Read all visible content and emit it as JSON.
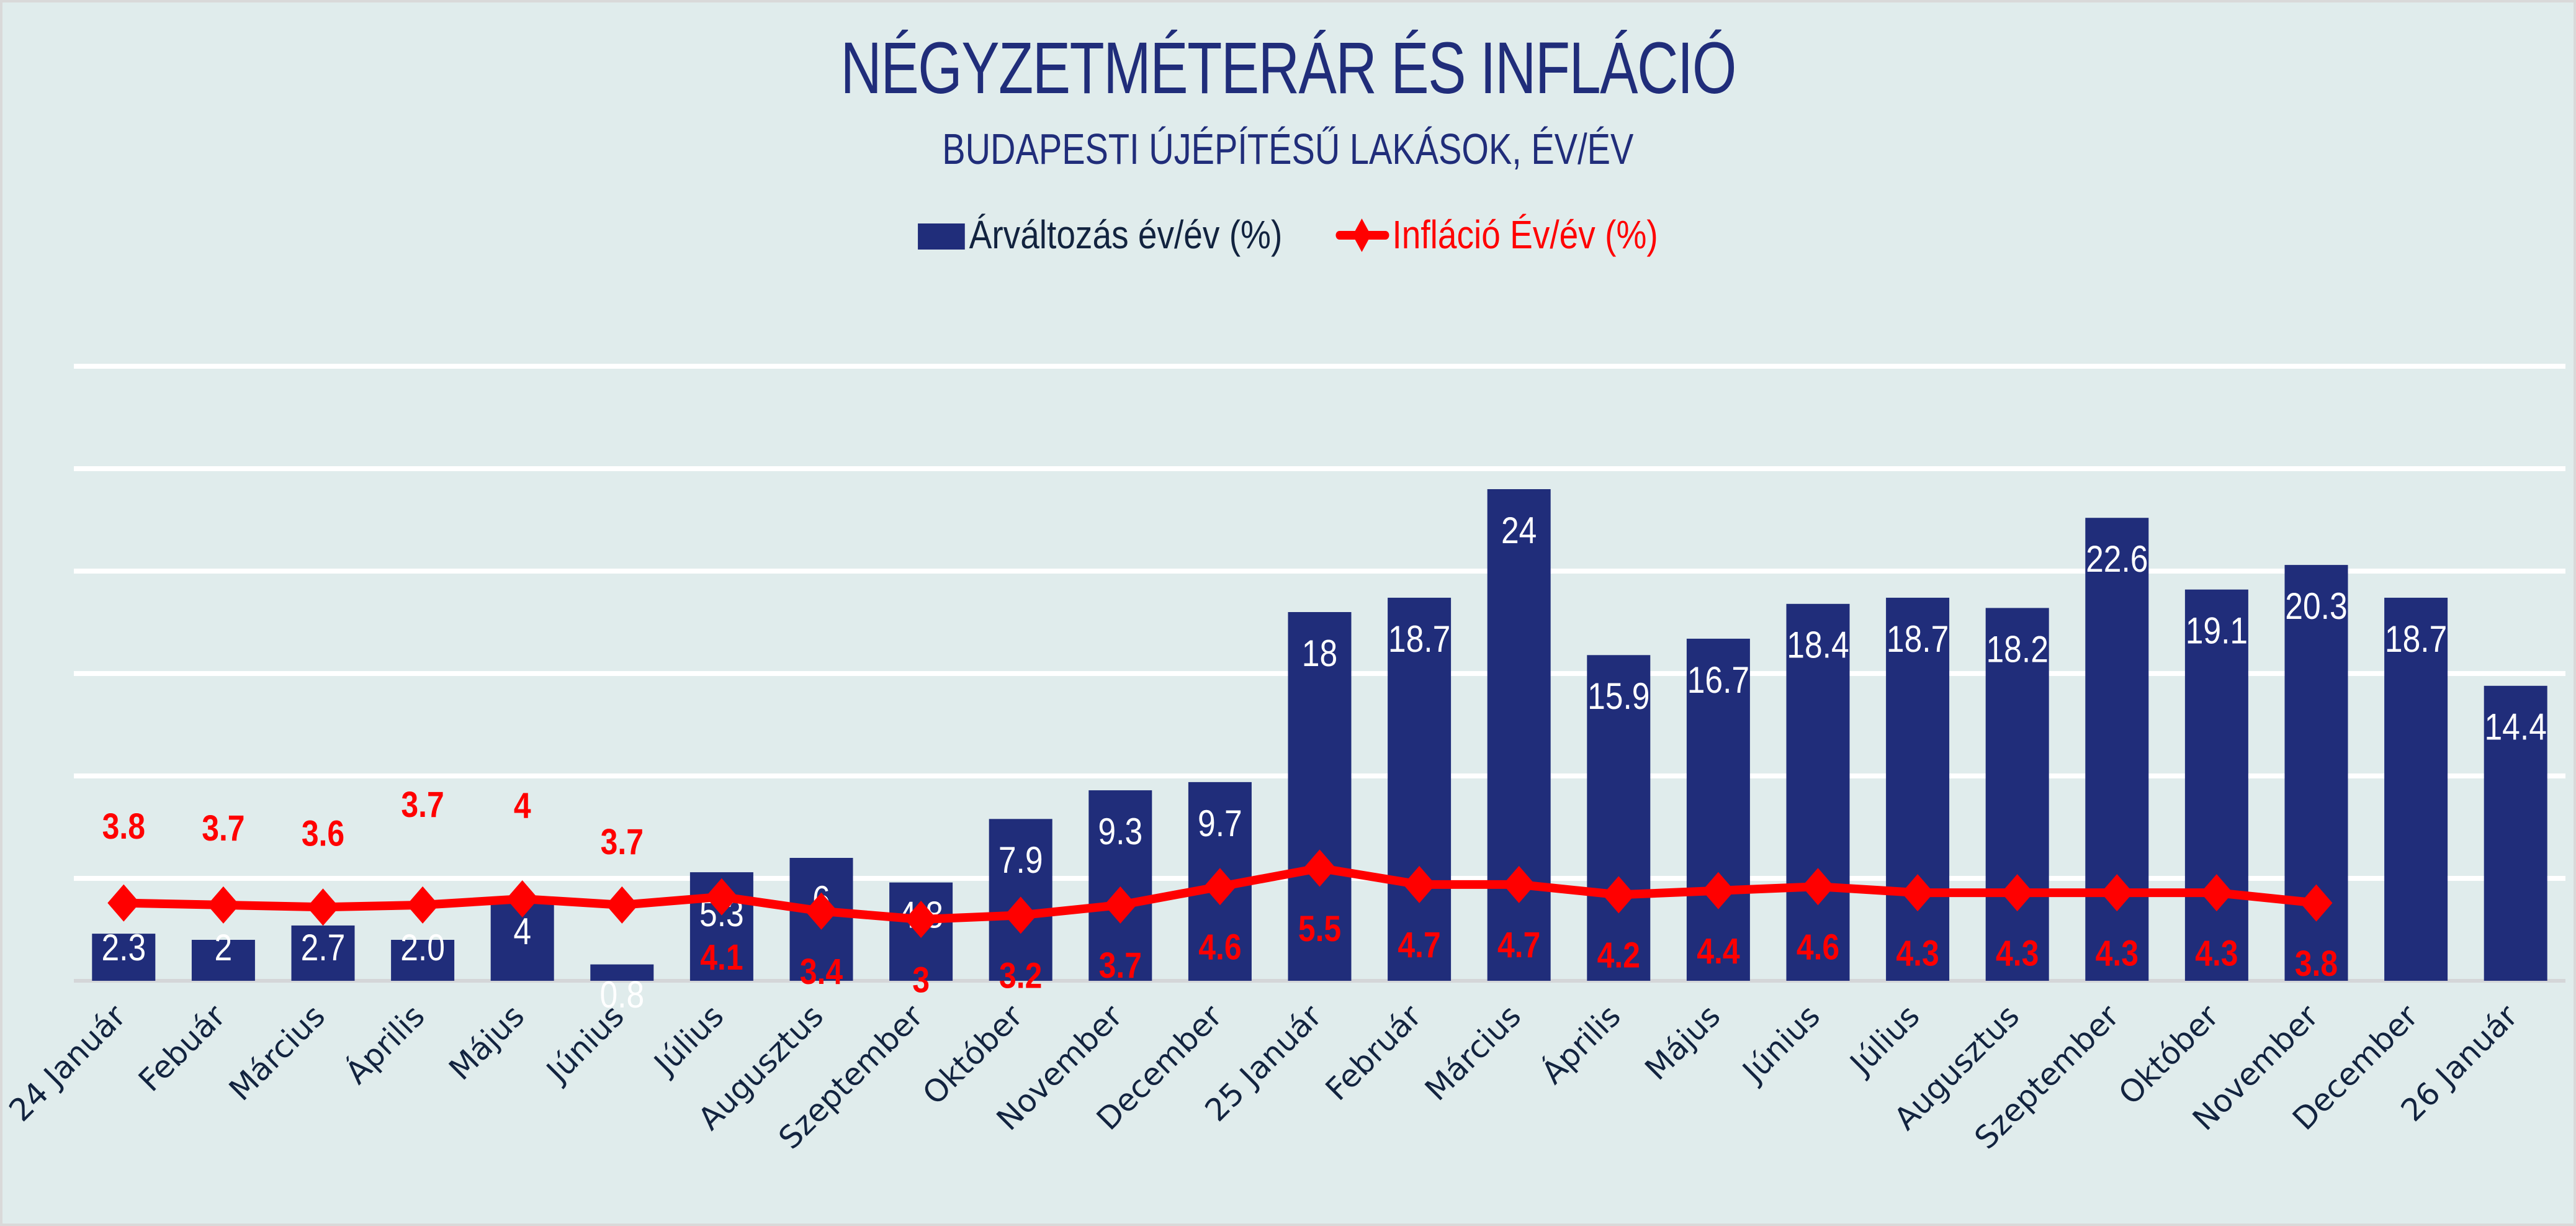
{
  "chart_data": {
    "type": "bar",
    "title": "NÉGYZETMÉTERÁR ÉS INFLÁCIÓ",
    "subtitle": "BUDAPESTI ÚJÉPÍTÉSŰ LAKÁSOK, ÉV/ÉV",
    "xlabel": "",
    "ylabel": "",
    "ylim": [
      0,
      30
    ],
    "yticks": [
      0,
      5,
      10,
      15,
      20,
      25,
      30
    ],
    "grid": true,
    "y_tick_labels_visible": false,
    "legend_position": "top-center",
    "categories": [
      "24 Január",
      "Febuár",
      "Március",
      "Április",
      "Május",
      "Június",
      "Július",
      "Augusztus",
      "Szeptember",
      "Október",
      "November",
      "December",
      "25 Január",
      "Február",
      "Március",
      "Április",
      "Május",
      "Június",
      "Július",
      "Augusztus",
      "Szeptember",
      "Október",
      "November",
      "December",
      "26 Január"
    ],
    "series": [
      {
        "name": "Árváltozás év/év (%)",
        "type": "bar",
        "color": "#202d7a",
        "values": [
          2.3,
          2,
          2.7,
          2.0,
          4,
          0.8,
          5.3,
          6,
          4.8,
          7.9,
          9.3,
          9.7,
          18,
          18.7,
          24,
          15.9,
          16.7,
          18.4,
          18.7,
          18.2,
          22.6,
          19.1,
          20.3,
          18.7,
          14.4
        ],
        "labels": [
          "2.3",
          "2",
          "2.7",
          "2.0",
          "4",
          "0.8",
          "5.3",
          "6",
          "4.8",
          "7.9",
          "9.3",
          "9.7",
          "18",
          "18.7",
          "24",
          "15.9",
          "16.7",
          "18.4",
          "18.7",
          "18.2",
          "22.6",
          "19.1",
          "20.3",
          "18.7",
          "14.4"
        ]
      },
      {
        "name": "Infláció Év/év (%)",
        "type": "line",
        "marker": "diamond",
        "color": "#ff0000",
        "values": [
          3.8,
          3.7,
          3.6,
          3.7,
          4,
          3.7,
          4.1,
          3.4,
          3,
          3.2,
          3.7,
          4.6,
          5.5,
          4.7,
          4.7,
          4.2,
          4.4,
          4.6,
          4.3,
          4.3,
          4.3,
          4.3,
          3.8,
          null,
          null
        ],
        "labels": [
          "3.8",
          "3.7",
          "3.6",
          "3.7",
          "4",
          "3.7",
          "4.1",
          "3.4",
          "3",
          "3.2",
          "3.7",
          "4.6",
          "5.5",
          "4.7",
          "4.7",
          "4.2",
          "4.4",
          "4.6",
          "4.3",
          "4.3",
          "4.3",
          "4.3",
          "3.8",
          null,
          null
        ]
      }
    ]
  },
  "legend": {
    "bar_label": "Árváltozás év/év (%)",
    "line_label": "Infláció Év/év (%)"
  }
}
